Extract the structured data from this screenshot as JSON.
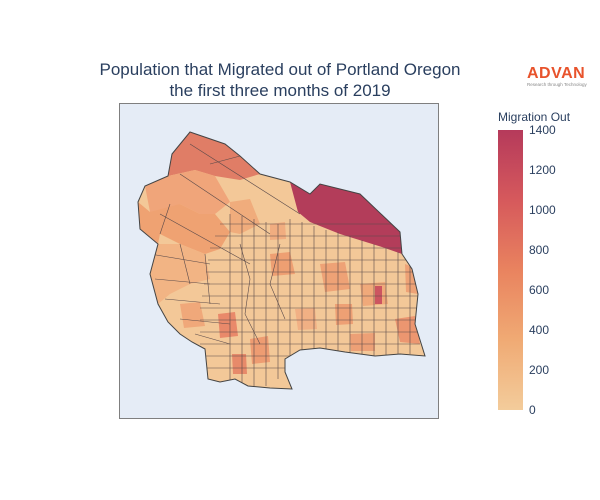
{
  "chart": {
    "title_line1": "Population that Migrated out of Portland Oregon",
    "title_line2": "the first three months of 2019"
  },
  "logo": {
    "name": "ADVAN",
    "tagline": "Research through Technology"
  },
  "colorbar": {
    "title": "Migration Out",
    "ticks": [
      "0",
      "200",
      "400",
      "600",
      "800",
      "1000",
      "1200",
      "1400"
    ],
    "colors": [
      "#f3cc9b",
      "#f0aa74",
      "#e9835f",
      "#d6595c",
      "#b53a5b"
    ]
  },
  "chart_data": {
    "type": "choropleth",
    "variable": "Migration Out",
    "range": [
      0,
      1400
    ],
    "colorscale": [
      "#f3cc9b",
      "#f0aa74",
      "#e9835f",
      "#d6595c",
      "#b53a5b"
    ]
  }
}
